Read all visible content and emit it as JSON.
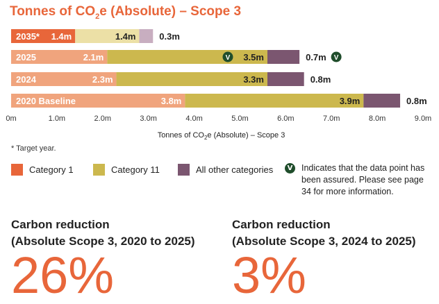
{
  "title": {
    "prefix": "Tonnes of CO",
    "sub": "2",
    "suffix": "e (Absolute) – Scope 3"
  },
  "colors": {
    "title": "#e8663a",
    "category1_dark": "#e8663a",
    "category1_light": "#f0a47d",
    "category11_dark": "#ccb84e",
    "category11_light": "#ece0a6",
    "other_dark": "#7b5670",
    "other_light": "#c8aec0",
    "assured": "#1f4d2b"
  },
  "chart_data": {
    "type": "bar",
    "orientation": "horizontal",
    "stacked": true,
    "title": "Tonnes of CO2e (Absolute) – Scope 3",
    "xlabel_prefix": "Tonnes of CO",
    "xlabel_sub": "2",
    "xlabel_suffix": "e (Absolute) – Scope 3",
    "xlim": [
      0,
      9.0
    ],
    "ticks": [
      0,
      1,
      2,
      3,
      4,
      5,
      6,
      7,
      8,
      9
    ],
    "tick_labels": [
      "0m",
      "1.0m",
      "2.0m",
      "3.0m",
      "4.0m",
      "5.0m",
      "6.0m",
      "7.0m",
      "8.0m",
      "9.0m"
    ],
    "categories": [
      "2035*",
      "2025",
      "2024",
      "2020 Baseline"
    ],
    "series": [
      {
        "name": "Category 1",
        "values": [
          1.4,
          2.1,
          2.3,
          3.8
        ],
        "labels": [
          "1.4m",
          "2.1m",
          "2.3m",
          "3.8m"
        ]
      },
      {
        "name": "Category 11",
        "values": [
          1.4,
          3.5,
          3.3,
          3.9
        ],
        "labels": [
          "1.4m",
          "3.5m",
          "3.3m",
          "3.9m"
        ]
      },
      {
        "name": "All other categories",
        "values": [
          0.3,
          0.7,
          0.8,
          0.8
        ],
        "labels": [
          "0.3m",
          "0.7m",
          "0.8m",
          "0.8m"
        ]
      }
    ],
    "target_rows": [
      0
    ],
    "assured": [
      {
        "row": 1,
        "series": 1
      },
      {
        "row": 1,
        "series": 2
      }
    ],
    "assured_glyph": "V"
  },
  "footnote": "*   Target year.",
  "legend": {
    "items": [
      {
        "label": "Category 1"
      },
      {
        "label": "Category 11"
      },
      {
        "label": "All other categories"
      }
    ],
    "assured_glyph": "V",
    "assured_text": "Indicates that the data point has been assured. Please see page 34 for more information."
  },
  "kpis": [
    {
      "title_line1": "Carbon reduction",
      "title_line2": "(Absolute Scope 3, 2020 to 2025)",
      "value": "26%"
    },
    {
      "title_line1": "Carbon reduction",
      "title_line2": "(Absolute Scope 3, 2024 to 2025)",
      "value": "3%"
    }
  ]
}
